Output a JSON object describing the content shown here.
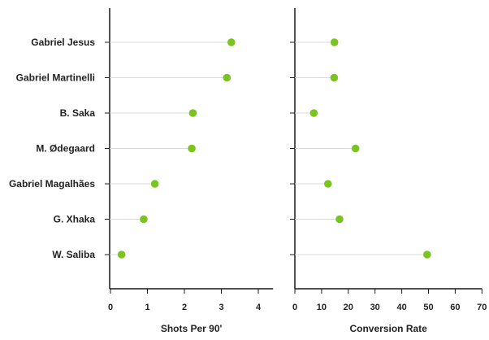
{
  "chart_data": {
    "type": "lollipop",
    "categories": [
      "Gabriel Jesus",
      "Gabriel Martinelli",
      "B. Saka",
      "M. Ødegaard",
      "Gabriel Magalhães",
      "G. Xhaka",
      "W. Saliba"
    ],
    "panels": [
      {
        "xlabel": "Shots Per 90'",
        "xlim": [
          0,
          4.4
        ],
        "ticks": [
          0,
          1,
          2,
          3,
          4
        ],
        "values": [
          3.27,
          3.15,
          2.23,
          2.2,
          1.2,
          0.9,
          0.3
        ]
      },
      {
        "xlabel": "Conversion Rate",
        "xlim": [
          0,
          70
        ],
        "ticks": [
          0,
          10,
          20,
          30,
          40,
          50,
          60,
          70
        ],
        "values": [
          14.8,
          14.7,
          7.1,
          22.7,
          12.4,
          16.7,
          49.5
        ]
      }
    ],
    "colors": {
      "marker": "#7ac41f",
      "stem": "#d9d9d9",
      "axis": "#1a1a1a"
    },
    "grid": false,
    "legend": "none"
  }
}
